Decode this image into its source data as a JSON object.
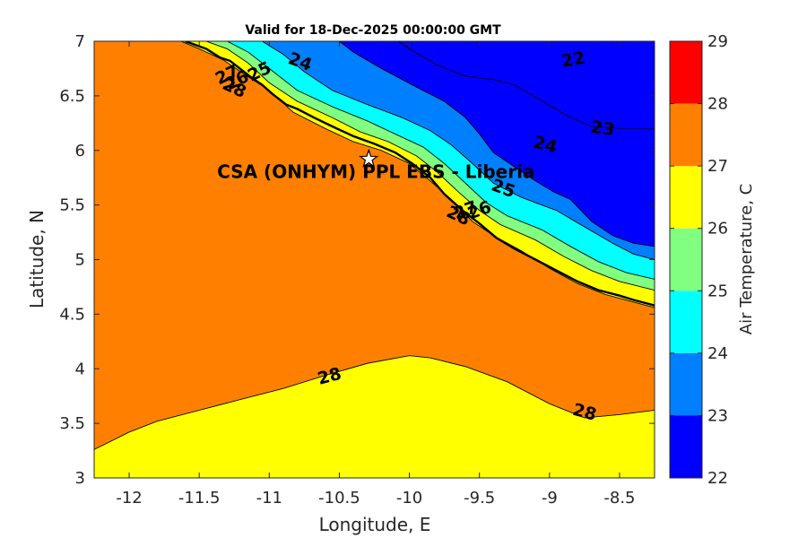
{
  "chart_data": {
    "type": "filled-contour",
    "title": "Valid for 18-Dec-2025 00:00:00 GMT",
    "xlabel": "Longitude, E",
    "ylabel": "Latitude, N",
    "xlim": [
      -12.25,
      -8.25
    ],
    "ylim": [
      3,
      7
    ],
    "xticks": [
      -12,
      -11.5,
      -11,
      -10.5,
      -10,
      -9.5,
      -9,
      -8.5
    ],
    "yticks": [
      3,
      3.5,
      4,
      4.5,
      5,
      5.5,
      6,
      6.5,
      7
    ],
    "colorbar": {
      "label": "Air Temperature, C",
      "levels": [
        22,
        23,
        24,
        25,
        26,
        27,
        28,
        29
      ],
      "colors": [
        "#0000ff",
        "#0080ff",
        "#00ffff",
        "#80ff80",
        "#ffff00",
        "#ff8000",
        "#ff0000",
        "#800000"
      ]
    },
    "contour_labels": [
      {
        "text": "22",
        "lon": -8.83,
        "lat": 6.83,
        "angle": -10
      },
      {
        "text": "23",
        "lon": -8.62,
        "lat": 6.2,
        "angle": 8
      },
      {
        "text": "24",
        "lon": -10.78,
        "lat": 6.81,
        "angle": 20
      },
      {
        "text": "24",
        "lon": -9.03,
        "lat": 6.05,
        "angle": 15
      },
      {
        "text": "25",
        "lon": -11.07,
        "lat": 6.72,
        "angle": -25
      },
      {
        "text": "25",
        "lon": -9.33,
        "lat": 5.65,
        "angle": 20
      },
      {
        "text": "26",
        "lon": -11.23,
        "lat": 6.64,
        "angle": -25
      },
      {
        "text": "26",
        "lon": -9.5,
        "lat": 5.45,
        "angle": -20
      },
      {
        "text": "27",
        "lon": -11.3,
        "lat": 6.69,
        "angle": -25
      },
      {
        "text": "27",
        "lon": -9.6,
        "lat": 5.45,
        "angle": -20
      },
      {
        "text": "28",
        "lon": -11.25,
        "lat": 6.57,
        "angle": 25
      },
      {
        "text": "28",
        "lon": -9.65,
        "lat": 5.4,
        "angle": 25
      },
      {
        "text": "28",
        "lon": -10.57,
        "lat": 3.93,
        "angle": -15
      },
      {
        "text": "28",
        "lon": -8.75,
        "lat": 3.6,
        "angle": 15
      }
    ],
    "site": {
      "label": "CSA (ONHYM) PPL EBS  - Liberia",
      "lon": -10.29,
      "lat": 5.92,
      "marker": "star"
    },
    "regions": [
      {
        "level": 28,
        "name": "land-and-sea-28",
        "points": [
          [
            -12.25,
            3.26
          ],
          [
            -12.25,
            7
          ],
          [
            -11.63,
            7
          ],
          [
            -11.5,
            6.93
          ],
          [
            -11.33,
            6.83
          ],
          [
            -11.18,
            6.7
          ],
          [
            -11.0,
            6.55
          ],
          [
            -10.83,
            6.35
          ],
          [
            -10.6,
            6.2
          ],
          [
            -10.4,
            6.08
          ],
          [
            -10.2,
            6.0
          ],
          [
            -10.0,
            5.88
          ],
          [
            -9.85,
            5.72
          ],
          [
            -9.7,
            5.55
          ],
          [
            -9.55,
            5.35
          ],
          [
            -9.4,
            5.22
          ],
          [
            -9.2,
            5.08
          ],
          [
            -9.0,
            4.92
          ],
          [
            -8.8,
            4.78
          ],
          [
            -8.6,
            4.68
          ],
          [
            -8.25,
            4.56
          ],
          [
            -8.25,
            3.62
          ],
          [
            -8.5,
            3.58
          ],
          [
            -8.75,
            3.55
          ],
          [
            -9.0,
            3.68
          ],
          [
            -9.3,
            3.88
          ],
          [
            -9.6,
            4.02
          ],
          [
            -9.85,
            4.1
          ],
          [
            -10.0,
            4.12
          ],
          [
            -10.3,
            4.05
          ],
          [
            -10.6,
            3.94
          ],
          [
            -10.9,
            3.82
          ],
          [
            -11.2,
            3.72
          ],
          [
            -11.5,
            3.62
          ],
          [
            -11.8,
            3.52
          ],
          [
            -12.0,
            3.42
          ]
        ]
      },
      {
        "level": 27,
        "name": "south-warm-27",
        "points": [
          [
            -12.25,
            3.0
          ],
          [
            -12.25,
            3.26
          ],
          [
            -12.0,
            3.42
          ],
          [
            -11.8,
            3.52
          ],
          [
            -11.5,
            3.62
          ],
          [
            -11.2,
            3.72
          ],
          [
            -10.9,
            3.82
          ],
          [
            -10.6,
            3.94
          ],
          [
            -10.3,
            4.05
          ],
          [
            -10.0,
            4.12
          ],
          [
            -9.85,
            4.1
          ],
          [
            -9.6,
            4.02
          ],
          [
            -9.3,
            3.88
          ],
          [
            -9.0,
            3.68
          ],
          [
            -8.75,
            3.55
          ],
          [
            -8.5,
            3.58
          ],
          [
            -8.25,
            3.62
          ],
          [
            -8.25,
            3.0
          ]
        ]
      },
      {
        "level": 27,
        "name": "coastal-band-27",
        "points": [
          [
            -11.63,
            7
          ],
          [
            -11.45,
            7
          ],
          [
            -11.3,
            6.93
          ],
          [
            -11.15,
            6.8
          ],
          [
            -11.0,
            6.62
          ],
          [
            -10.8,
            6.45
          ],
          [
            -10.55,
            6.3
          ],
          [
            -10.35,
            6.17
          ],
          [
            -10.15,
            6.08
          ],
          [
            -9.95,
            5.95
          ],
          [
            -9.8,
            5.8
          ],
          [
            -9.65,
            5.62
          ],
          [
            -9.5,
            5.45
          ],
          [
            -9.35,
            5.32
          ],
          [
            -9.1,
            5.18
          ],
          [
            -8.9,
            5.03
          ],
          [
            -8.7,
            4.9
          ],
          [
            -8.5,
            4.8
          ],
          [
            -8.25,
            4.72
          ],
          [
            -8.25,
            4.56
          ],
          [
            -8.6,
            4.68
          ],
          [
            -8.8,
            4.78
          ],
          [
            -9.0,
            4.92
          ],
          [
            -9.2,
            5.08
          ],
          [
            -9.4,
            5.22
          ],
          [
            -9.55,
            5.35
          ],
          [
            -9.7,
            5.55
          ],
          [
            -9.85,
            5.72
          ],
          [
            -10.0,
            5.88
          ],
          [
            -10.2,
            6.0
          ],
          [
            -10.4,
            6.08
          ],
          [
            -10.6,
            6.2
          ],
          [
            -10.83,
            6.35
          ],
          [
            -11.0,
            6.55
          ],
          [
            -11.18,
            6.7
          ],
          [
            -11.33,
            6.83
          ],
          [
            -11.5,
            6.93
          ]
        ]
      },
      {
        "level": 26,
        "name": "coastal-band-26",
        "points": [
          [
            -11.45,
            7
          ],
          [
            -11.3,
            7
          ],
          [
            -11.15,
            6.9
          ],
          [
            -11.0,
            6.75
          ],
          [
            -10.8,
            6.55
          ],
          [
            -10.55,
            6.4
          ],
          [
            -10.3,
            6.27
          ],
          [
            -10.1,
            6.15
          ],
          [
            -9.9,
            6.03
          ],
          [
            -9.75,
            5.88
          ],
          [
            -9.6,
            5.7
          ],
          [
            -9.45,
            5.52
          ],
          [
            -9.3,
            5.4
          ],
          [
            -9.05,
            5.27
          ],
          [
            -8.85,
            5.12
          ],
          [
            -8.65,
            4.98
          ],
          [
            -8.45,
            4.88
          ],
          [
            -8.25,
            4.82
          ],
          [
            -8.25,
            4.72
          ],
          [
            -8.5,
            4.8
          ],
          [
            -8.7,
            4.9
          ],
          [
            -8.9,
            5.03
          ],
          [
            -9.1,
            5.18
          ],
          [
            -9.35,
            5.32
          ],
          [
            -9.5,
            5.45
          ],
          [
            -9.65,
            5.62
          ],
          [
            -9.8,
            5.8
          ],
          [
            -9.95,
            5.95
          ],
          [
            -10.15,
            6.08
          ],
          [
            -10.35,
            6.17
          ],
          [
            -10.55,
            6.3
          ],
          [
            -10.8,
            6.45
          ],
          [
            -11.0,
            6.62
          ],
          [
            -11.15,
            6.8
          ],
          [
            -11.3,
            6.93
          ]
        ]
      },
      {
        "level": 25,
        "name": "coastal-band-25",
        "points": [
          [
            -11.3,
            7
          ],
          [
            -11.05,
            7
          ],
          [
            -10.9,
            6.88
          ],
          [
            -10.75,
            6.72
          ],
          [
            -10.55,
            6.55
          ],
          [
            -10.3,
            6.42
          ],
          [
            -10.05,
            6.3
          ],
          [
            -9.85,
            6.18
          ],
          [
            -9.7,
            6.05
          ],
          [
            -9.55,
            5.88
          ],
          [
            -9.4,
            5.7
          ],
          [
            -9.2,
            5.57
          ],
          [
            -8.95,
            5.45
          ],
          [
            -8.75,
            5.3
          ],
          [
            -8.55,
            5.15
          ],
          [
            -8.4,
            5.05
          ],
          [
            -8.25,
            5.0
          ],
          [
            -8.25,
            4.82
          ],
          [
            -8.45,
            4.88
          ],
          [
            -8.65,
            4.98
          ],
          [
            -8.85,
            5.12
          ],
          [
            -9.05,
            5.27
          ],
          [
            -9.3,
            5.4
          ],
          [
            -9.45,
            5.52
          ],
          [
            -9.6,
            5.7
          ],
          [
            -9.75,
            5.88
          ],
          [
            -9.9,
            6.03
          ],
          [
            -10.1,
            6.15
          ],
          [
            -10.3,
            6.27
          ],
          [
            -10.55,
            6.4
          ],
          [
            -10.8,
            6.55
          ],
          [
            -11.0,
            6.75
          ],
          [
            -11.15,
            6.9
          ]
        ]
      },
      {
        "level": 24,
        "name": "coastal-band-24",
        "points": [
          [
            -11.05,
            7
          ],
          [
            -10.5,
            7
          ],
          [
            -10.4,
            6.9
          ],
          [
            -10.2,
            6.75
          ],
          [
            -9.95,
            6.58
          ],
          [
            -9.75,
            6.45
          ],
          [
            -9.6,
            6.3
          ],
          [
            -9.5,
            6.15
          ],
          [
            -9.4,
            5.98
          ],
          [
            -9.25,
            5.85
          ],
          [
            -9.1,
            5.72
          ],
          [
            -8.97,
            5.62
          ],
          [
            -8.85,
            5.55
          ],
          [
            -8.7,
            5.35
          ],
          [
            -8.55,
            5.22
          ],
          [
            -8.4,
            5.15
          ],
          [
            -8.25,
            5.12
          ],
          [
            -8.25,
            5.0
          ],
          [
            -8.4,
            5.05
          ],
          [
            -8.55,
            5.15
          ],
          [
            -8.75,
            5.3
          ],
          [
            -8.95,
            5.45
          ],
          [
            -9.2,
            5.57
          ],
          [
            -9.4,
            5.7
          ],
          [
            -9.55,
            5.88
          ],
          [
            -9.7,
            6.05
          ],
          [
            -9.85,
            6.18
          ],
          [
            -10.05,
            6.3
          ],
          [
            -10.3,
            6.42
          ],
          [
            -10.55,
            6.55
          ],
          [
            -10.75,
            6.72
          ],
          [
            -10.9,
            6.88
          ]
        ]
      },
      {
        "level": 23,
        "name": "offshore-band-23",
        "points": [
          [
            -10.5,
            7
          ],
          [
            -10.08,
            7
          ],
          [
            -10.0,
            6.93
          ],
          [
            -9.8,
            6.78
          ],
          [
            -9.6,
            6.68
          ],
          [
            -9.4,
            6.65
          ],
          [
            -9.25,
            6.6
          ],
          [
            -9.05,
            6.45
          ],
          [
            -8.85,
            6.3
          ],
          [
            -8.7,
            6.22
          ],
          [
            -8.5,
            6.2
          ],
          [
            -8.25,
            6.2
          ],
          [
            -8.25,
            5.12
          ],
          [
            -8.4,
            5.15
          ],
          [
            -8.55,
            5.22
          ],
          [
            -8.7,
            5.35
          ],
          [
            -8.85,
            5.55
          ],
          [
            -8.97,
            5.62
          ],
          [
            -9.1,
            5.72
          ],
          [
            -9.25,
            5.85
          ],
          [
            -9.4,
            5.98
          ],
          [
            -9.5,
            6.15
          ],
          [
            -9.6,
            6.3
          ],
          [
            -9.75,
            6.45
          ],
          [
            -9.95,
            6.58
          ],
          [
            -10.2,
            6.75
          ],
          [
            -10.4,
            6.9
          ]
        ]
      },
      {
        "level": 22,
        "name": "offshore-cold-22",
        "points": [
          [
            -10.08,
            7
          ],
          [
            -8.25,
            7
          ],
          [
            -8.25,
            6.2
          ],
          [
            -8.5,
            6.2
          ],
          [
            -8.7,
            6.22
          ],
          [
            -8.85,
            6.3
          ],
          [
            -9.05,
            6.45
          ],
          [
            -9.25,
            6.6
          ],
          [
            -9.4,
            6.65
          ],
          [
            -9.6,
            6.68
          ],
          [
            -9.8,
            6.78
          ],
          [
            -10.0,
            6.93
          ]
        ]
      }
    ],
    "coastline": [
      [
        -11.6,
        7
      ],
      [
        -11.45,
        6.93
      ],
      [
        -11.35,
        6.85
      ],
      [
        -11.28,
        6.82
      ],
      [
        -11.2,
        6.74
      ],
      [
        -11.12,
        6.66
      ],
      [
        -11.05,
        6.6
      ],
      [
        -10.98,
        6.52
      ],
      [
        -10.88,
        6.42
      ],
      [
        -10.8,
        6.38
      ],
      [
        -10.68,
        6.3
      ],
      [
        -10.55,
        6.22
      ],
      [
        -10.4,
        6.13
      ],
      [
        -10.25,
        6.06
      ],
      [
        -10.1,
        5.98
      ],
      [
        -9.98,
        5.88
      ],
      [
        -9.85,
        5.75
      ],
      [
        -9.75,
        5.6
      ],
      [
        -9.62,
        5.45
      ],
      [
        -9.5,
        5.33
      ],
      [
        -9.38,
        5.2
      ],
      [
        -9.25,
        5.1
      ],
      [
        -9.1,
        5.0
      ],
      [
        -8.95,
        4.9
      ],
      [
        -8.8,
        4.8
      ],
      [
        -8.65,
        4.72
      ],
      [
        -8.5,
        4.67
      ],
      [
        -8.4,
        4.63
      ],
      [
        -8.25,
        4.58
      ]
    ]
  }
}
